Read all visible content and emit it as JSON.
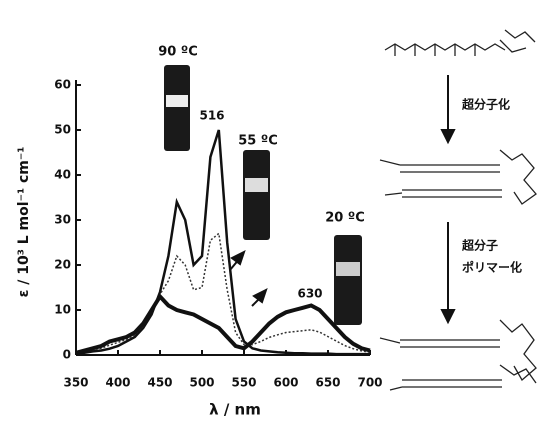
{
  "chart_data": {
    "type": "line",
    "x_label": "λ / nm",
    "y_label": "ε / 10³ L mol⁻¹ cm⁻¹",
    "x": [
      350,
      360,
      370,
      380,
      390,
      400,
      410,
      420,
      430,
      440,
      450,
      460,
      470,
      480,
      490,
      500,
      510,
      520,
      530,
      540,
      550,
      560,
      570,
      580,
      590,
      600,
      610,
      620,
      630,
      640,
      650,
      660,
      670,
      680,
      690,
      700
    ],
    "series": [
      {
        "color": "#111111",
        "values": [
          0.5,
          0.5,
          0.8,
          1,
          1.4,
          2,
          3,
          4,
          6,
          9,
          14,
          22,
          34,
          30,
          20,
          22,
          44,
          50,
          25,
          8,
          3,
          1.5,
          1,
          0.8,
          0.6,
          0.5,
          0.4,
          0.4,
          0.3,
          0.3,
          0.3,
          0.2,
          0.2,
          0.2,
          0.2,
          0.2
        ]
      },
      {
        "color": "#333333",
        "values": [
          0.5,
          0.8,
          1.2,
          1.5,
          2.2,
          2.8,
          3.5,
          4.5,
          6.5,
          9.5,
          13.5,
          16.5,
          22,
          20,
          14.5,
          15,
          25.5,
          27,
          14.5,
          5,
          2.3,
          2.3,
          3,
          3.9,
          4.5,
          5,
          5.2,
          5.4,
          5.6,
          5.1,
          4.1,
          3.1,
          2.1,
          1.4,
          0.9,
          0.6
        ]
      },
      {
        "color": "#111111",
        "values": [
          0.5,
          1,
          1.5,
          2,
          3,
          3.5,
          4,
          5,
          7,
          10,
          13,
          11,
          10,
          9.5,
          9,
          8,
          7,
          6,
          4,
          2,
          1.5,
          3,
          5,
          7,
          8.5,
          9.5,
          10,
          10.5,
          11,
          10,
          8,
          6,
          4,
          2.5,
          1.5,
          1
        ]
      }
    ],
    "xlim": [
      350,
      700
    ],
    "xticks": [
      350,
      400,
      450,
      500,
      550,
      600,
      650,
      700
    ],
    "ylim": [
      0,
      60
    ],
    "yticks": [
      0,
      10,
      20,
      30,
      40,
      50,
      60
    ],
    "annotations": [
      "516",
      "630"
    ],
    "temperatures": [
      "90 ºC",
      "55 ºC",
      "20 ºC"
    ],
    "steps": [
      "超分子化",
      "超分子",
      "ポリマー化"
    ]
  }
}
